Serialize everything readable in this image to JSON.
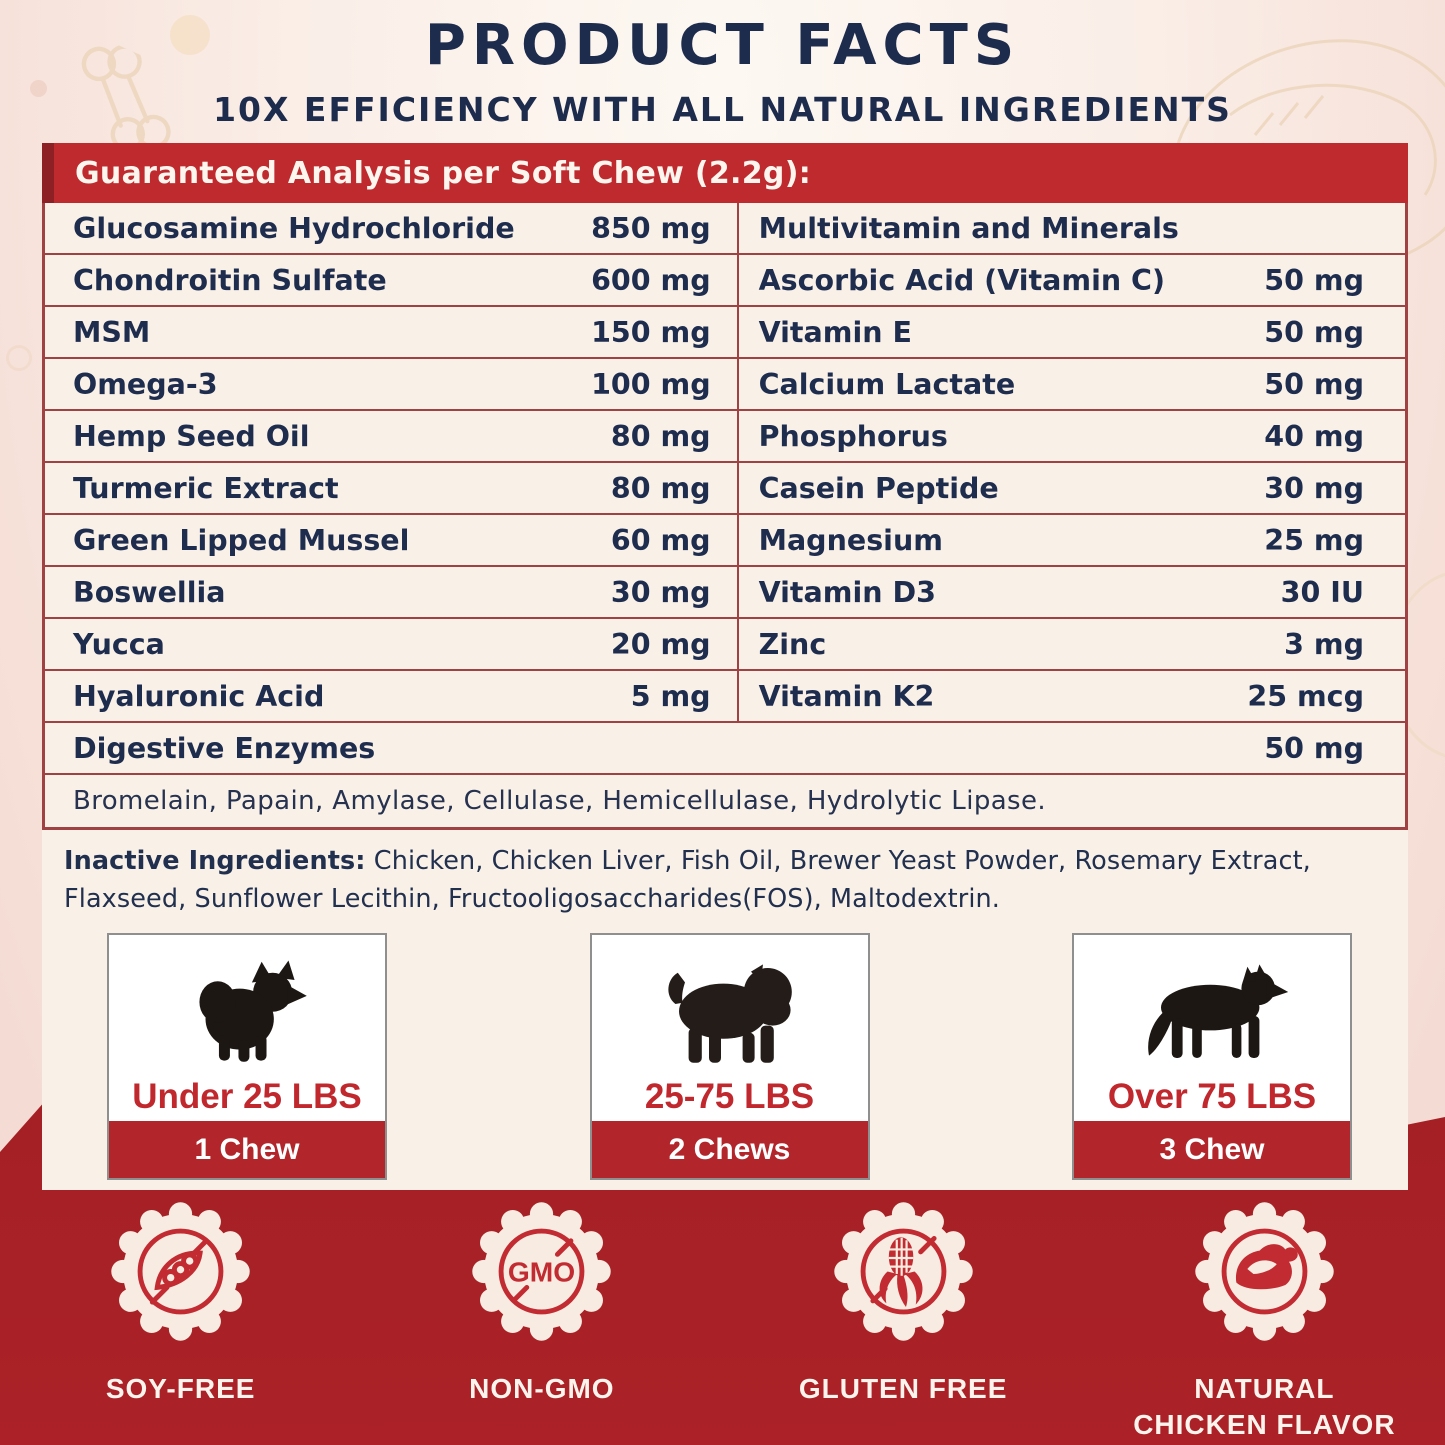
{
  "header": {
    "title": "PRODUCT FACTS",
    "subtitle": "10X EFFICIENCY WITH ALL NATURAL INGREDIENTS"
  },
  "analysis": {
    "header": "Guaranteed Analysis per Soft Chew (2.2g):",
    "left_rows": [
      {
        "label": "Glucosamine Hydrochloride",
        "value": "850 mg"
      },
      {
        "label": "Chondroitin Sulfate",
        "value": "600 mg"
      },
      {
        "label": "MSM",
        "value": "150 mg"
      },
      {
        "label": "Omega-3",
        "value": "100 mg"
      },
      {
        "label": "Hemp Seed Oil",
        "value": "80 mg"
      },
      {
        "label": "Turmeric Extract",
        "value": "80 mg"
      },
      {
        "label": "Green Lipped Mussel",
        "value": "60 mg"
      },
      {
        "label": "Boswellia",
        "value": "30 mg"
      },
      {
        "label": "Yucca",
        "value": "20 mg"
      },
      {
        "label": "Hyaluronic Acid",
        "value": "5  mg"
      }
    ],
    "right_rows": [
      {
        "label": "Multivitamin and Minerals",
        "value": ""
      },
      {
        "label": "Ascorbic Acid (Vitamin C)",
        "value": "50 mg"
      },
      {
        "label": "Vitamin E",
        "value": "50 mg"
      },
      {
        "label": "Calcium Lactate",
        "value": "50 mg"
      },
      {
        "label": "Phosphorus",
        "value": "40 mg"
      },
      {
        "label": "Casein Peptide",
        "value": "30 mg"
      },
      {
        "label": "Magnesium",
        "value": "25 mg"
      },
      {
        "label": "Vitamin D3",
        "value": "30 IU"
      },
      {
        "label": "Zinc",
        "value": "3 mg"
      },
      {
        "label": "Vitamin K2",
        "value": "25 mcg"
      }
    ],
    "digestive": {
      "label": "Digestive Enzymes",
      "value": "50 mg"
    },
    "enzymes_note": "Bromelain, Papain, Amylase, Cellulase, Hemicellulase, Hydrolytic Lipase."
  },
  "inactive": {
    "label": "Inactive Ingredients:",
    "text": " Chicken, Chicken Liver, Fish Oil, Brewer Yeast Powder, Rosemary Extract, Flaxseed, Sunflower Lecithin, Fructooligosaccharides(FOS), Maltodextrin."
  },
  "dosage_cards": [
    {
      "weight": "Under 25 LBS",
      "chews": "1 Chew",
      "icon": "small-dog-icon"
    },
    {
      "weight": "25-75 LBS",
      "chews": "2 Chews",
      "icon": "medium-dog-icon"
    },
    {
      "weight": "Over 75 LBS",
      "chews": "3 Chew",
      "icon": "large-dog-icon"
    }
  ],
  "badges": [
    {
      "label": "SOY-FREE",
      "icon": "soy-free-seal-icon"
    },
    {
      "label": "NON-GMO",
      "icon": "non-gmo-seal-icon",
      "icon_text": "GMO"
    },
    {
      "label": "GLUTEN FREE",
      "icon": "gluten-free-seal-icon"
    },
    {
      "label": "NATURAL\nCHICKEN FLAVOR",
      "icon": "chicken-flavor-seal-icon"
    }
  ],
  "colors": {
    "accent_red": "#c22b31",
    "header_red": "#bf2a2f",
    "band_red": "#a72025",
    "chew_bar_red": "#b2252a",
    "navy": "#1e2c4e",
    "cream_panel": "#f9f1e8",
    "badge_cream": "#f8ece2"
  }
}
